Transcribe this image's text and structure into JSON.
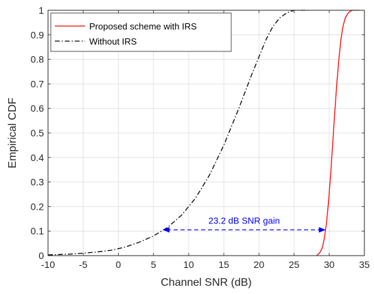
{
  "chart_data": {
    "type": "line",
    "title": "",
    "xlabel": "Channel SNR (dB)",
    "ylabel": "Empirical CDF",
    "xlim": [
      -10,
      35
    ],
    "ylim": [
      0,
      1
    ],
    "x_ticks": [
      -10,
      -5,
      0,
      5,
      10,
      15,
      20,
      25,
      30,
      35
    ],
    "y_ticks": [
      0,
      0.1,
      0.2,
      0.3,
      0.4,
      0.5,
      0.6,
      0.7,
      0.8,
      0.9,
      1
    ],
    "x_tick_labels": [
      "-10",
      "-5",
      "0",
      "5",
      "10",
      "15",
      "20",
      "25",
      "30",
      "35"
    ],
    "y_tick_labels": [
      "0",
      "0.1",
      "0.2",
      "0.3",
      "0.4",
      "0.5",
      "0.6",
      "0.7",
      "0.8",
      "0.9",
      "1"
    ],
    "grid": true,
    "legend_position": "top-left",
    "series": [
      {
        "name": "Proposed scheme with IRS",
        "color": "#ff0000",
        "line_style": "solid",
        "x": [
          28.2,
          28.6,
          29.0,
          29.3,
          29.6,
          29.9,
          30.2,
          30.5,
          30.8,
          31.1,
          31.4,
          31.7,
          32.0,
          32.3,
          32.6,
          32.9,
          33.3,
          33.8,
          34.3
        ],
        "y": [
          0.0,
          0.01,
          0.03,
          0.07,
          0.13,
          0.22,
          0.33,
          0.46,
          0.59,
          0.71,
          0.81,
          0.89,
          0.94,
          0.97,
          0.985,
          0.995,
          1.0,
          1.0,
          1.0
        ]
      },
      {
        "name": "Without IRS",
        "color": "#000000",
        "line_style": "dash-dot",
        "x": [
          -10,
          -7,
          -5,
          -3,
          -1,
          1,
          3,
          5,
          7,
          9,
          11,
          13,
          15,
          17,
          19,
          20,
          21,
          22,
          23,
          24,
          25,
          26,
          27
        ],
        "y": [
          0.003,
          0.006,
          0.01,
          0.015,
          0.022,
          0.035,
          0.055,
          0.08,
          0.115,
          0.165,
          0.235,
          0.33,
          0.45,
          0.59,
          0.74,
          0.81,
          0.88,
          0.935,
          0.97,
          0.99,
          1.0,
          1.0,
          1.0
        ]
      }
    ],
    "annotation": {
      "text": "23.2 dB SNR gain",
      "color": "#0000ff",
      "x_start": 6.3,
      "x_end": 29.5,
      "y": 0.105
    }
  }
}
